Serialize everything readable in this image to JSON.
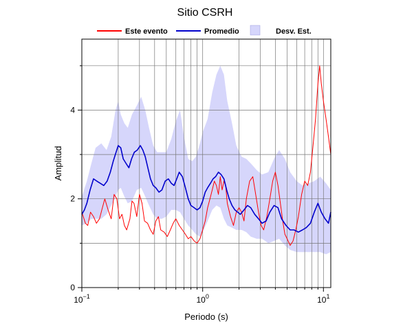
{
  "chart_data": {
    "type": "line",
    "title": "Sitio CSRH",
    "xlabel": "Periodo (s)",
    "ylabel": "Amplitud",
    "xscale": "log",
    "xlim": [
      0.1,
      11.5
    ],
    "ylim": [
      0,
      5.6
    ],
    "grid": true,
    "legend_position": "top",
    "x_ticks": [
      {
        "value": 0.1,
        "base": "10",
        "exp": "−1"
      },
      {
        "value": 1,
        "base": "10",
        "exp": "0"
      },
      {
        "value": 10,
        "base": "10",
        "exp": "1"
      }
    ],
    "y_ticks": [
      {
        "value": 0,
        "label": "0"
      },
      {
        "value": 2,
        "label": "2"
      },
      {
        "value": 4,
        "label": "4"
      }
    ],
    "legend": [
      {
        "label": "Este evento",
        "kind": "line",
        "color": "#ff0000"
      },
      {
        "label": "Promedio",
        "kind": "line",
        "color": "#0000cc"
      },
      {
        "label": "Desv. Est.",
        "kind": "area",
        "color": "#d6d6fb"
      }
    ],
    "series": [
      {
        "name": "Este evento",
        "color": "#ff0000",
        "x": [
          0.1,
          0.107,
          0.112,
          0.118,
          0.125,
          0.132,
          0.14,
          0.148,
          0.155,
          0.165,
          0.175,
          0.185,
          0.195,
          0.205,
          0.215,
          0.225,
          0.235,
          0.25,
          0.26,
          0.27,
          0.285,
          0.3,
          0.315,
          0.33,
          0.35,
          0.37,
          0.39,
          0.41,
          0.43,
          0.45,
          0.48,
          0.51,
          0.54,
          0.57,
          0.6,
          0.64,
          0.68,
          0.72,
          0.76,
          0.8,
          0.85,
          0.9,
          0.95,
          1.0,
          1.05,
          1.1,
          1.15,
          1.2,
          1.25,
          1.3,
          1.35,
          1.4,
          1.45,
          1.5,
          1.55,
          1.6,
          1.7,
          1.8,
          1.9,
          2.0,
          2.1,
          2.2,
          2.3,
          2.45,
          2.6,
          2.75,
          2.9,
          3.05,
          3.2,
          3.4,
          3.6,
          3.8,
          4.0,
          4.2,
          4.4,
          4.6,
          4.8,
          5.0,
          5.3,
          5.6,
          5.9,
          6.2,
          6.6,
          7.0,
          7.4,
          7.8,
          8.2,
          8.6,
          9.0,
          9.3,
          9.6,
          10.0,
          10.5,
          11.0,
          11.5
        ],
        "values": [
          1.7,
          1.45,
          1.4,
          1.7,
          1.6,
          1.45,
          1.55,
          1.8,
          2.0,
          1.75,
          1.55,
          2.1,
          2.0,
          1.55,
          1.65,
          1.4,
          1.3,
          1.55,
          1.95,
          1.9,
          1.6,
          2.1,
          1.9,
          1.5,
          1.45,
          1.3,
          1.2,
          1.5,
          1.6,
          1.3,
          1.25,
          1.15,
          1.3,
          1.45,
          1.55,
          1.4,
          1.3,
          1.2,
          1.1,
          1.15,
          1.05,
          1.0,
          1.1,
          1.3,
          1.5,
          1.8,
          2.0,
          2.2,
          2.4,
          2.3,
          2.1,
          2.5,
          2.2,
          2.4,
          2.3,
          1.9,
          1.6,
          1.4,
          1.7,
          1.8,
          1.7,
          1.5,
          2.0,
          2.4,
          2.5,
          2.1,
          1.7,
          1.4,
          1.3,
          1.6,
          2.0,
          2.4,
          2.6,
          2.3,
          1.9,
          1.5,
          1.2,
          1.1,
          0.95,
          1.05,
          1.3,
          1.6,
          2.1,
          2.4,
          2.3,
          2.6,
          3.2,
          3.8,
          4.6,
          5.0,
          4.6,
          4.2,
          3.8,
          3.4,
          3.0
        ]
      },
      {
        "name": "Promedio",
        "color": "#0000cc",
        "x": [
          0.1,
          0.105,
          0.11,
          0.117,
          0.125,
          0.133,
          0.142,
          0.152,
          0.162,
          0.172,
          0.182,
          0.192,
          0.2,
          0.21,
          0.22,
          0.232,
          0.245,
          0.258,
          0.272,
          0.288,
          0.305,
          0.32,
          0.335,
          0.352,
          0.37,
          0.39,
          0.41,
          0.435,
          0.46,
          0.49,
          0.52,
          0.55,
          0.58,
          0.61,
          0.64,
          0.68,
          0.72,
          0.76,
          0.8,
          0.85,
          0.9,
          0.95,
          1.0,
          1.05,
          1.1,
          1.16,
          1.22,
          1.28,
          1.35,
          1.42,
          1.5,
          1.58,
          1.66,
          1.75,
          1.85,
          1.95,
          2.05,
          2.2,
          2.35,
          2.5,
          2.7,
          2.9,
          3.1,
          3.35,
          3.6,
          3.9,
          4.2,
          4.5,
          4.9,
          5.3,
          5.7,
          6.2,
          6.7,
          7.2,
          7.8,
          8.4,
          9.0,
          9.6,
          10.3,
          11.0,
          11.5
        ],
        "values": [
          1.65,
          1.75,
          1.9,
          2.2,
          2.45,
          2.4,
          2.35,
          2.3,
          2.4,
          2.6,
          2.85,
          3.05,
          3.2,
          3.15,
          2.9,
          2.8,
          2.7,
          2.9,
          3.05,
          3.1,
          3.2,
          3.1,
          2.95,
          2.7,
          2.45,
          2.3,
          2.25,
          2.15,
          2.2,
          2.4,
          2.45,
          2.35,
          2.3,
          2.45,
          2.6,
          2.5,
          2.25,
          2.0,
          1.85,
          1.8,
          1.75,
          1.8,
          1.95,
          2.15,
          2.25,
          2.35,
          2.45,
          2.5,
          2.6,
          2.55,
          2.45,
          2.2,
          2.0,
          1.85,
          1.75,
          1.7,
          1.65,
          1.75,
          1.85,
          1.8,
          1.65,
          1.55,
          1.45,
          1.5,
          1.7,
          1.85,
          1.8,
          1.55,
          1.4,
          1.3,
          1.3,
          1.25,
          1.3,
          1.35,
          1.45,
          1.7,
          1.9,
          1.7,
          1.55,
          1.45,
          1.7
        ]
      },
      {
        "name": "Desv. Est.",
        "type": "area",
        "color": "#d6d6fb",
        "x": [
          0.1,
          0.11,
          0.12,
          0.13,
          0.145,
          0.16,
          0.175,
          0.19,
          0.2,
          0.21,
          0.225,
          0.24,
          0.26,
          0.285,
          0.31,
          0.335,
          0.36,
          0.39,
          0.42,
          0.46,
          0.5,
          0.55,
          0.6,
          0.65,
          0.7,
          0.76,
          0.82,
          0.88,
          0.95,
          1.0,
          1.1,
          1.2,
          1.3,
          1.4,
          1.5,
          1.6,
          1.75,
          1.9,
          2.1,
          2.3,
          2.5,
          2.8,
          3.1,
          3.5,
          3.9,
          4.3,
          4.8,
          5.3,
          6.0,
          6.7,
          7.5,
          8.4,
          9.4,
          10.5,
          11.5
        ],
        "upper": [
          2.05,
          2.4,
          2.8,
          3.15,
          3.25,
          3.1,
          3.4,
          4.0,
          4.2,
          3.9,
          3.7,
          3.6,
          3.9,
          4.1,
          4.3,
          4.0,
          3.6,
          3.2,
          3.05,
          3.05,
          3.05,
          3.35,
          3.75,
          4.0,
          3.4,
          2.9,
          2.85,
          2.95,
          3.25,
          3.5,
          3.8,
          4.4,
          4.8,
          5.0,
          4.8,
          4.2,
          3.7,
          3.2,
          2.95,
          2.9,
          2.8,
          2.65,
          2.55,
          2.6,
          2.9,
          3.1,
          2.9,
          2.6,
          2.4,
          2.3,
          2.35,
          2.4,
          2.5,
          2.35,
          2.2
        ],
        "lower": [
          1.4,
          1.45,
          1.55,
          1.55,
          1.55,
          1.65,
          1.85,
          2.05,
          2.2,
          2.25,
          2.05,
          1.9,
          1.95,
          2.2,
          2.25,
          2.05,
          1.85,
          1.65,
          1.55,
          1.55,
          1.6,
          1.75,
          1.75,
          1.7,
          1.55,
          1.4,
          1.3,
          1.2,
          1.15,
          1.25,
          1.5,
          1.75,
          1.85,
          1.8,
          1.55,
          1.4,
          1.35,
          1.3,
          1.3,
          1.25,
          1.15,
          1.1,
          1.1,
          1.0,
          1.05,
          1.1,
          0.95,
          0.85,
          0.8,
          0.8,
          0.8,
          0.8,
          0.8,
          0.75,
          0.8
        ]
      }
    ]
  }
}
